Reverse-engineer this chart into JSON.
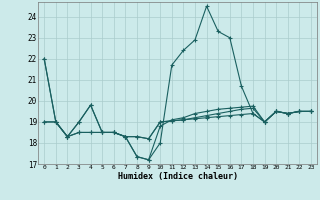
{
  "xlabel": "Humidex (Indice chaleur)",
  "bg_color": "#cceaea",
  "grid_color": "#aacccc",
  "line_color": "#1a6060",
  "xlim": [
    -0.5,
    23.5
  ],
  "ylim": [
    17,
    24.7
  ],
  "xticks": [
    0,
    1,
    2,
    3,
    4,
    5,
    6,
    7,
    8,
    9,
    10,
    11,
    12,
    13,
    14,
    15,
    16,
    17,
    18,
    19,
    20,
    21,
    22,
    23
  ],
  "yticks": [
    17,
    18,
    19,
    20,
    21,
    22,
    23,
    24
  ],
  "series": [
    [
      22.0,
      19.0,
      18.3,
      19.0,
      19.8,
      18.5,
      18.5,
      18.3,
      17.35,
      17.2,
      18.0,
      21.7,
      22.4,
      22.9,
      24.5,
      23.3,
      23.0,
      20.7,
      19.4,
      19.0,
      19.5,
      19.4,
      19.5,
      19.5
    ],
    [
      22.0,
      19.0,
      18.3,
      19.0,
      19.8,
      18.5,
      18.5,
      18.3,
      17.35,
      17.2,
      18.8,
      19.1,
      19.2,
      19.4,
      19.5,
      19.6,
      19.65,
      19.7,
      19.75,
      19.0,
      19.5,
      19.4,
      19.5,
      19.5
    ],
    [
      19.0,
      19.0,
      18.3,
      18.5,
      18.5,
      18.5,
      18.5,
      18.3,
      18.3,
      18.2,
      19.0,
      19.05,
      19.1,
      19.2,
      19.3,
      19.4,
      19.5,
      19.6,
      19.65,
      19.0,
      19.5,
      19.4,
      19.5,
      19.5
    ],
    [
      19.0,
      19.0,
      18.3,
      18.5,
      18.5,
      18.5,
      18.5,
      18.3,
      18.3,
      18.2,
      19.0,
      19.05,
      19.1,
      19.15,
      19.2,
      19.25,
      19.3,
      19.35,
      19.4,
      19.0,
      19.5,
      19.4,
      19.5,
      19.5
    ]
  ]
}
